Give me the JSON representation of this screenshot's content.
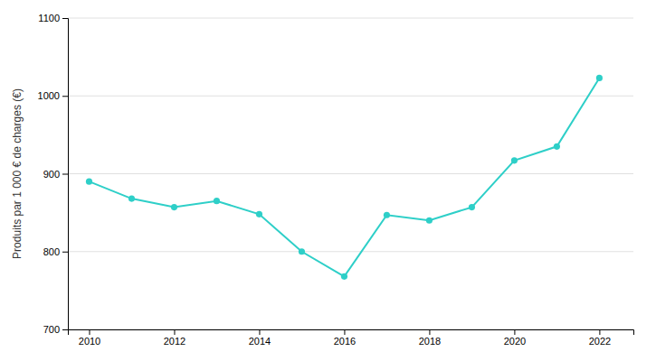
{
  "chart_data": {
    "type": "line",
    "ylabel": "Produits par 1 000 € de charges (€)",
    "x": [
      2010,
      2011,
      2012,
      2013,
      2014,
      2015,
      2016,
      2017,
      2018,
      2019,
      2020,
      2021,
      2022
    ],
    "values": [
      890,
      868,
      857,
      865,
      848,
      800,
      768,
      847,
      840,
      857,
      917,
      935,
      1023
    ],
    "color": "#2ecfc8",
    "marker": "circle",
    "xlim": [
      2009.5,
      2022.8
    ],
    "xticks": [
      2010,
      2012,
      2014,
      2016,
      2018,
      2020,
      2022
    ],
    "ylim": [
      700,
      1100
    ],
    "yticks": [
      700,
      800,
      900,
      1000,
      1100
    ],
    "grid": true
  }
}
